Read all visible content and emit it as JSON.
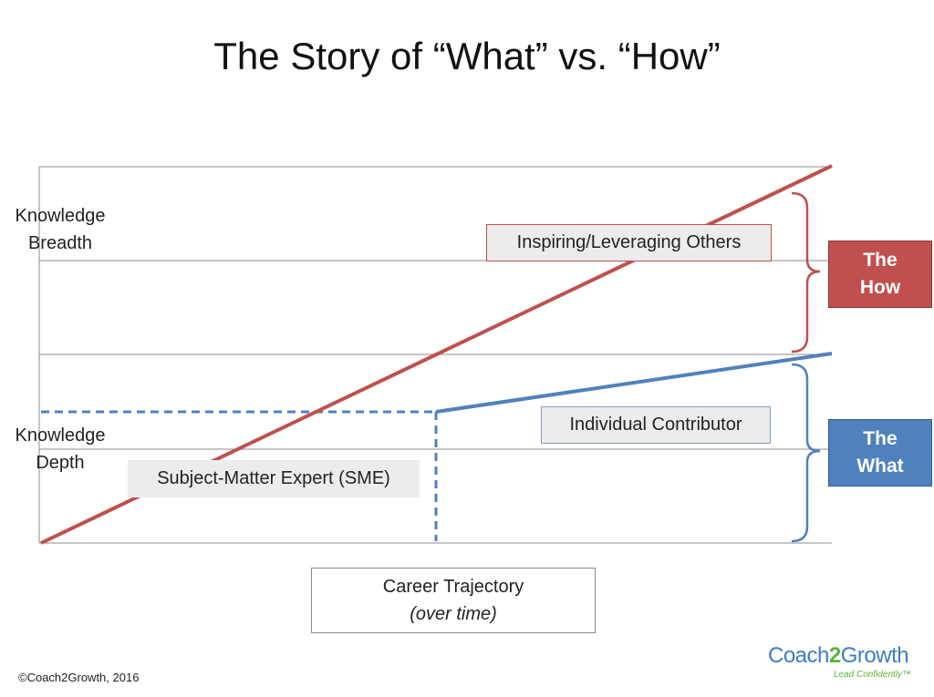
{
  "title": "The Story of “What” vs. “How”",
  "axis": {
    "y_upper_line1": "Knowledge",
    "y_upper_line2": "Breadth",
    "y_lower_line1": "Knowledge",
    "y_lower_line2": "Depth",
    "x_line1": "Career Trajectory",
    "x_line2": "(over time)"
  },
  "labels": {
    "how_box": "Inspiring/Leveraging Others",
    "what_box": "Individual Contributor",
    "sme_box": "Subject-Matter Expert (SME)"
  },
  "legend": {
    "how_line1": "The",
    "how_line2": "How",
    "what_line1": "The",
    "what_line2": "What"
  },
  "colors": {
    "how": "#c0504d",
    "what": "#4f81bd",
    "grid": "#8c8c8c"
  },
  "footer": {
    "copyright": "©Coach2Growth, 2016",
    "logo_pre": "Coach",
    "logo_two": "2",
    "logo_post": "Growth",
    "logo_tagline": "Lead Confidently™"
  },
  "icons": {
    "how_bracket": "right-curly-brace-icon",
    "what_bracket": "right-curly-brace-icon"
  }
}
